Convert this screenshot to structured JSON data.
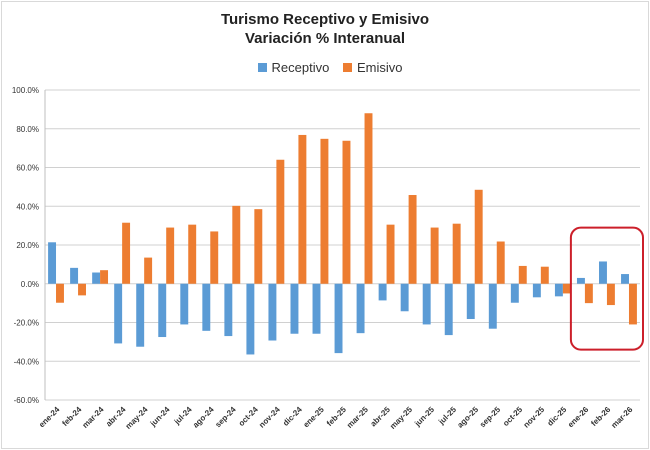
{
  "chart_data": {
    "type": "bar",
    "title": "Turismo Receptivo y Emisivo",
    "subtitle": "Variación % Interanual",
    "xlabel": "",
    "ylabel": "",
    "ylim": [
      -60,
      100
    ],
    "yticks": [
      100,
      80,
      60,
      40,
      20,
      0,
      -20,
      -40,
      -60
    ],
    "ytick_labels": [
      "100.0%",
      "80.0%",
      "60.0%",
      "40.0%",
      "20.0%",
      "0.0%",
      "-20.0%",
      "-40.0%",
      "-60.0%"
    ],
    "grid": true,
    "legend_position": "top-center",
    "categories": [
      "ene-24",
      "feb-24",
      "mar-24",
      "abr-24",
      "may-24",
      "jun-24",
      "jul-24",
      "ago-24",
      "sep-24",
      "oct-24",
      "nov-24",
      "dic-24",
      "ene-25",
      "feb-25",
      "mar-25",
      "abr-25",
      "may-25",
      "jun-25",
      "jul-25",
      "ago-25",
      "sep-25",
      "oct-25",
      "nov-25",
      "dic-25",
      "ene-26",
      "feb-26",
      "mar-26"
    ],
    "series": [
      {
        "name": "Receptivo",
        "color": "#5b9bd5",
        "values": [
          21.4,
          8.2,
          5.8,
          -30.8,
          -32.5,
          -27.5,
          -21.0,
          -24.3,
          -27.0,
          -36.5,
          -29.3,
          -25.8,
          -25.8,
          -35.8,
          -25.5,
          -8.6,
          -14.2,
          -21.0,
          -26.5,
          -18.2,
          -23.2,
          -9.8,
          -7.0,
          -6.5,
          3.0,
          11.5,
          5.0
        ]
      },
      {
        "name": "Emisivo",
        "color": "#ed7d31",
        "values": [
          -9.8,
          -6.0,
          7.0,
          31.5,
          13.5,
          29.0,
          30.5,
          27.0,
          40.2,
          38.5,
          64.0,
          76.8,
          74.8,
          73.8,
          88.0,
          30.5,
          45.8,
          29.0,
          31.0,
          48.5,
          21.8,
          9.2,
          8.8,
          -5.0,
          -10.0,
          -11.0,
          -21.0
        ]
      }
    ],
    "annotations": [
      {
        "type": "highlight-box",
        "categories": [
          "ene-26",
          "feb-26",
          "mar-26"
        ],
        "color": "#cc1f2a"
      }
    ]
  }
}
